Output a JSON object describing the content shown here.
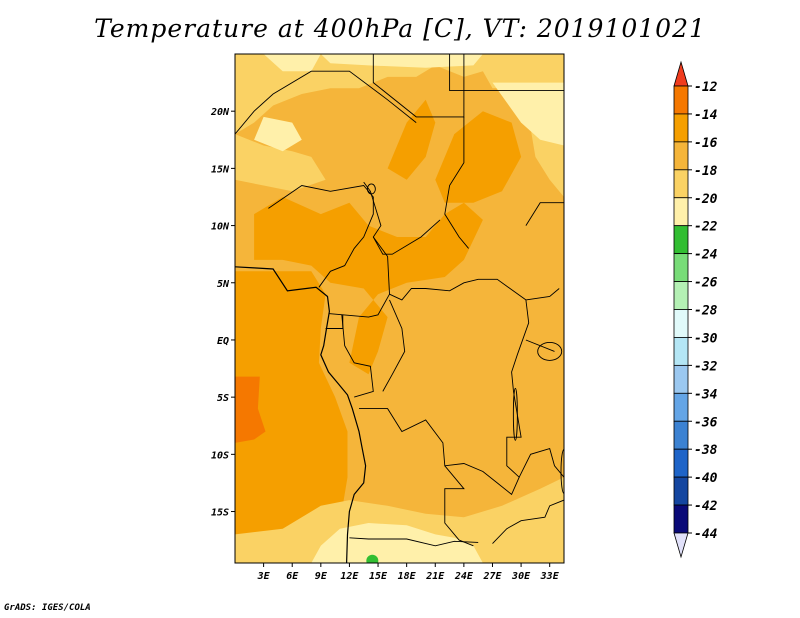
{
  "chart_data": {
    "type": "heatmap",
    "title": "Temperature at 400hPa [C], VT: 2019101021",
    "variable": "Temperature at 400hPa",
    "units": "C",
    "valid_time": "2019101021",
    "x_ticks": [
      "3E",
      "6E",
      "9E",
      "12E",
      "15E",
      "18E",
      "21E",
      "24E",
      "27E",
      "30E",
      "33E"
    ],
    "y_ticks": [
      "20N",
      "15N",
      "10N",
      "5N",
      "EQ",
      "5S",
      "10S",
      "15S"
    ],
    "xlim": [
      0,
      34.5
    ],
    "ylim": [
      -19.5,
      25
    ],
    "colorbar": {
      "levels": [
        "-12",
        "-14",
        "-16",
        "-18",
        "-20",
        "-22",
        "-24",
        "-26",
        "-28",
        "-30",
        "-32",
        "-34",
        "-36",
        "-38",
        "-40",
        "-42",
        "-44"
      ],
      "colors": [
        "#f03c1e",
        "#f57800",
        "#f59f00",
        "#f5b53a",
        "#fad264",
        "#fff0aa",
        "#32be32",
        "#78dc78",
        "#b4f0b4",
        "#e1fafa",
        "#b4e6f5",
        "#9bc8f0",
        "#64a5e6",
        "#3c82d2",
        "#1e64c8",
        "#1446a0",
        "#0a0a78",
        "#e1e1fa"
      ]
    },
    "field_colors": {
      "minus_16_to_18": "#f5b53a",
      "minus_14_to_16": "#f59f00",
      "minus_12_to_14": "#f57800",
      "minus_18_to_20": "#fad264",
      "minus_20_to_22": "#fff0aa",
      "minus_22_to_24": "#32be32"
    }
  },
  "credit": "GrADS: IGES/COLA"
}
